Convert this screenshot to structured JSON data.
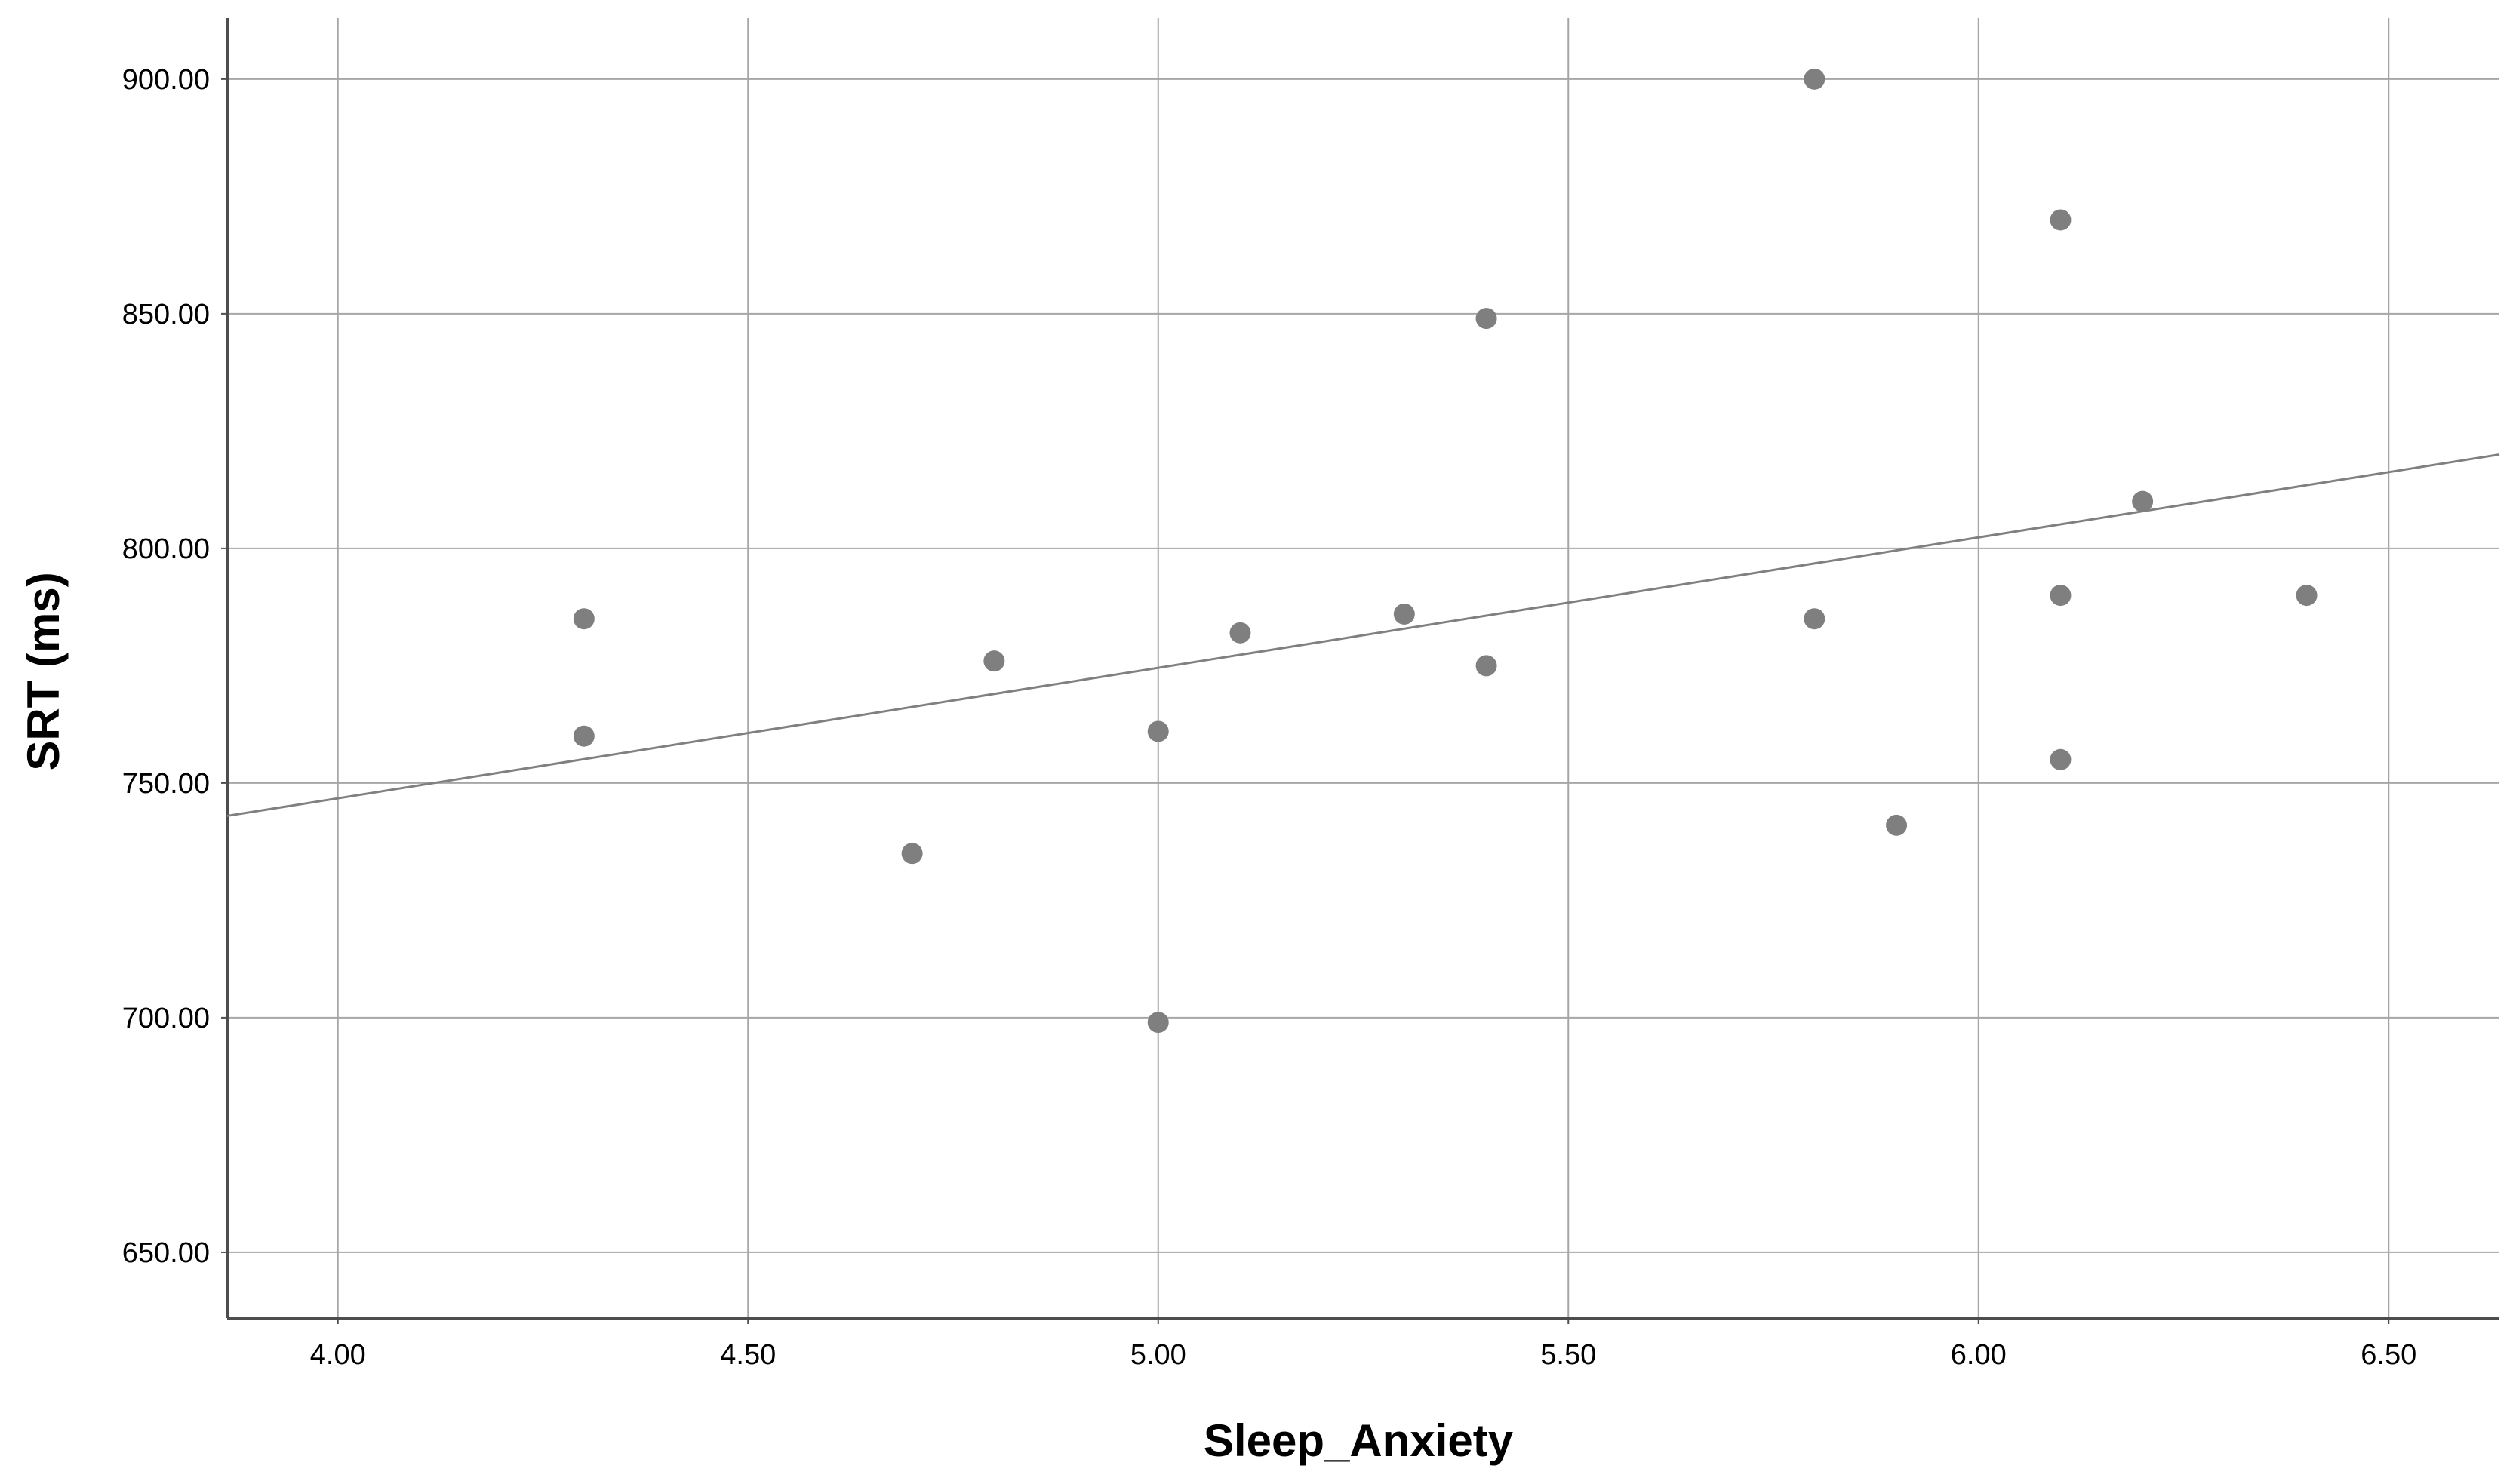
{
  "chart_data": {
    "type": "scatter",
    "title": "",
    "xlabel": "Sleep_Anxiety",
    "ylabel": "SRT (ms)",
    "xlim": [
      3.865,
      6.635
    ],
    "ylim": [
      636,
      913
    ],
    "x_ticks": [
      "4.00",
      "4.50",
      "5.00",
      "5.50",
      "6.00",
      "6.50"
    ],
    "y_ticks": [
      "650.00",
      "700.00",
      "750.00",
      "800.00",
      "850.00",
      "900.00"
    ],
    "grid": true,
    "legend": "none",
    "points": [
      {
        "x": 4.3,
        "y": 785
      },
      {
        "x": 4.3,
        "y": 760
      },
      {
        "x": 4.7,
        "y": 735
      },
      {
        "x": 4.8,
        "y": 776
      },
      {
        "x": 5.0,
        "y": 761
      },
      {
        "x": 5.0,
        "y": 699
      },
      {
        "x": 5.1,
        "y": 782
      },
      {
        "x": 5.3,
        "y": 786
      },
      {
        "x": 5.4,
        "y": 849
      },
      {
        "x": 5.4,
        "y": 775
      },
      {
        "x": 5.8,
        "y": 900
      },
      {
        "x": 5.8,
        "y": 785
      },
      {
        "x": 5.9,
        "y": 741
      },
      {
        "x": 6.1,
        "y": 870
      },
      {
        "x": 6.1,
        "y": 790
      },
      {
        "x": 6.1,
        "y": 755
      },
      {
        "x": 6.2,
        "y": 810
      },
      {
        "x": 6.4,
        "y": 790
      }
    ],
    "fit_line": {
      "x": [
        3.865,
        6.635
      ],
      "y": [
        743,
        820
      ]
    },
    "colors": {
      "points": "#7f7f7f",
      "grid": "#a6a6a6",
      "axis": "#4d4d4d",
      "fit_line": "#808080"
    }
  }
}
